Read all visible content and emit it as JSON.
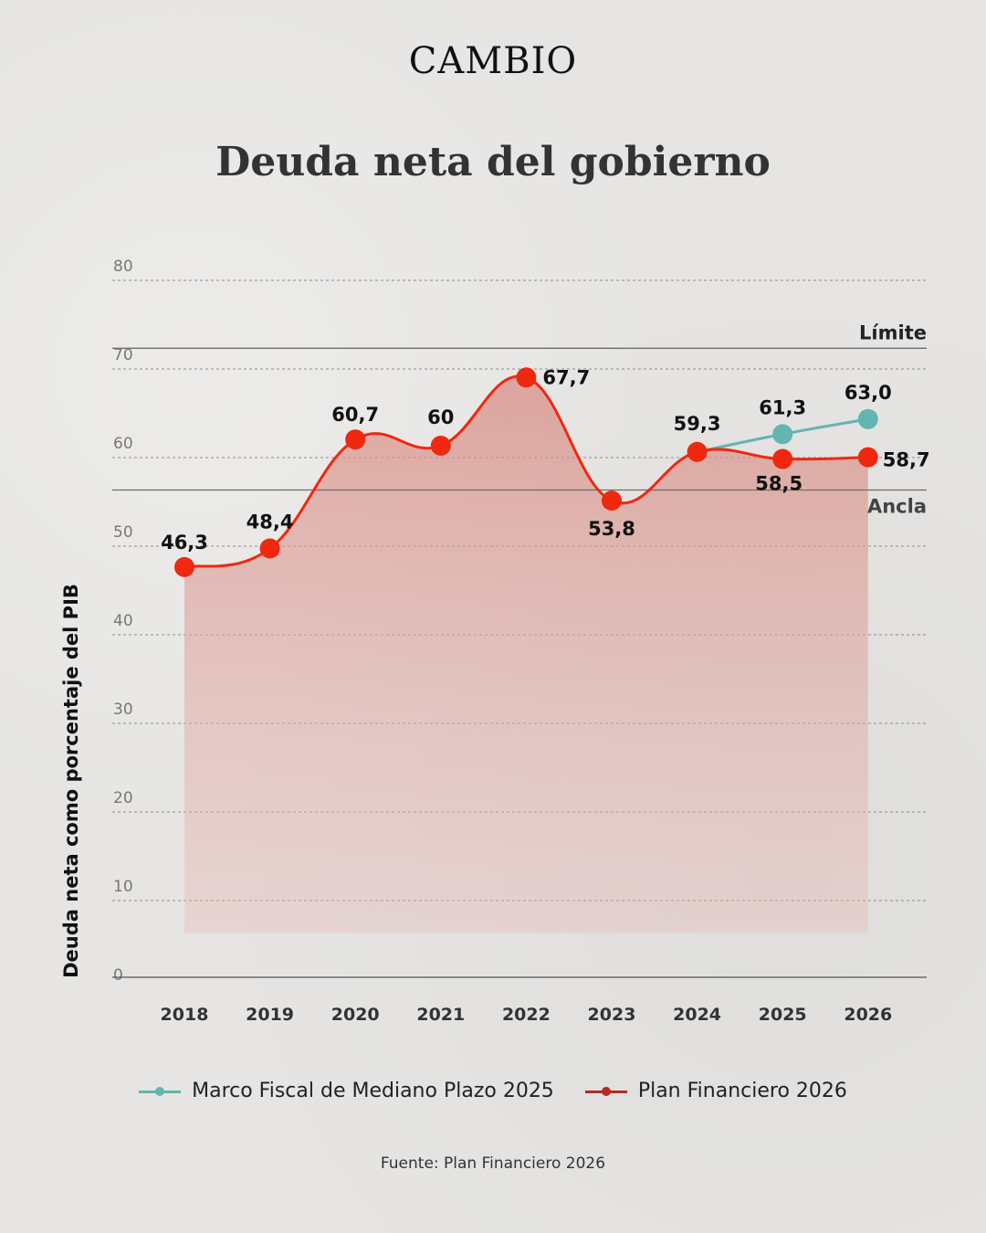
{
  "brand": "CAMBIO",
  "chart_data": {
    "type": "line",
    "title": "Deuda neta del gobierno",
    "ylabel": "Deuda neta como porcentaje del PIB",
    "xlabel": "",
    "ylim": [
      0,
      80
    ],
    "yticks": [
      0,
      10,
      20,
      30,
      40,
      50,
      60,
      70,
      80
    ],
    "categories": [
      "2018",
      "2019",
      "2020",
      "2021",
      "2022",
      "2023",
      "2024",
      "2025",
      "2026"
    ],
    "grid": true,
    "legend_position": "bottom",
    "reference_lines": [
      {
        "label": "Límite",
        "value": 71
      },
      {
        "label": "Ancla",
        "value": 55
      }
    ],
    "series": [
      {
        "name": "Marco Fiscal de Mediano Plazo 2025",
        "color": "#62b5b1",
        "points": [
          {
            "x": "2024",
            "y": 59.3,
            "label": "59,3"
          },
          {
            "x": "2025",
            "y": 61.3,
            "label": "61,3"
          },
          {
            "x": "2026",
            "y": 63.0,
            "label": "63,0"
          }
        ]
      },
      {
        "name": "Plan Financiero 2026",
        "color": "#f0280f",
        "points": [
          {
            "x": "2018",
            "y": 46.3,
            "label": "46,3"
          },
          {
            "x": "2019",
            "y": 48.4,
            "label": "48,4"
          },
          {
            "x": "2020",
            "y": 60.7,
            "label": "60,7"
          },
          {
            "x": "2021",
            "y": 60,
            "label": "60"
          },
          {
            "x": "2022",
            "y": 67.7,
            "label": "67,7"
          },
          {
            "x": "2023",
            "y": 53.8,
            "label": "53,8"
          },
          {
            "x": "2024",
            "y": 59.3,
            "label": "59,3"
          },
          {
            "x": "2025",
            "y": 58.5,
            "label": "58,5"
          },
          {
            "x": "2026",
            "y": 58.7,
            "label": "58,7"
          }
        ]
      }
    ],
    "source": "Fuente: Plan Financiero 2026"
  }
}
